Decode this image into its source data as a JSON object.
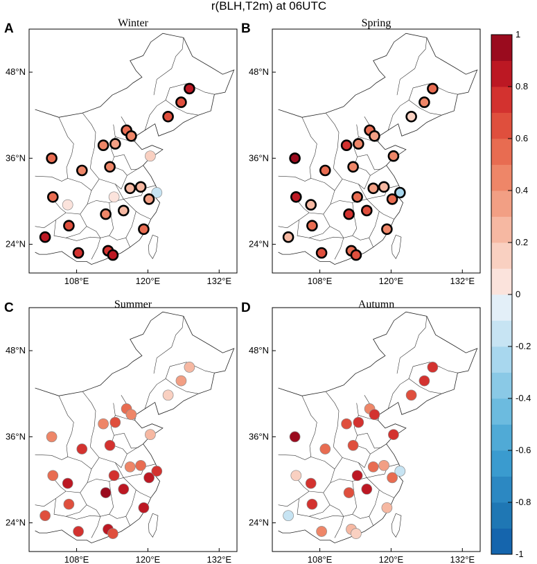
{
  "chart_data": {
    "type": "scatter",
    "title": "r(BLH,T2m) at 06UTC",
    "xlim": [
      100,
      135
    ],
    "ylim": [
      20,
      54
    ],
    "x_ticks": [
      108,
      120,
      132
    ],
    "x_tick_labels": [
      "108°E",
      "120°E",
      "132°E"
    ],
    "y_ticks": [
      24,
      36,
      48
    ],
    "y_tick_labels": [
      "24°N",
      "36°N",
      "48°N"
    ],
    "colorbar": {
      "min": -1,
      "max": 1,
      "step": 0.1,
      "tick_values": [
        1,
        0.8,
        0.6,
        0.4,
        0.2,
        0,
        -0.2,
        -0.4,
        -0.6,
        -0.8,
        -1
      ],
      "tick_labels": [
        "1",
        "0.8",
        "0.6",
        "0.4",
        "0.2",
        "0",
        "-0.2",
        "-0.4",
        "-0.6",
        "-0.8",
        "-1"
      ]
    },
    "panels": [
      {
        "letter": "A",
        "season": "Winter",
        "points": [
          {
            "lon": 127.0,
            "lat": 45.7,
            "r": 0.85,
            "sig": true
          },
          {
            "lon": 125.6,
            "lat": 43.8,
            "r": 0.65,
            "sig": true
          },
          {
            "lon": 123.4,
            "lat": 41.8,
            "r": 0.6,
            "sig": true
          },
          {
            "lon": 116.4,
            "lat": 39.9,
            "r": 0.55,
            "sig": true
          },
          {
            "lon": 117.2,
            "lat": 39.1,
            "r": 0.45,
            "sig": true
          },
          {
            "lon": 112.5,
            "lat": 37.8,
            "r": 0.4,
            "sig": true
          },
          {
            "lon": 114.5,
            "lat": 38.0,
            "r": 0.3,
            "sig": true
          },
          {
            "lon": 120.4,
            "lat": 36.3,
            "r": 0.12,
            "sig": false
          },
          {
            "lon": 103.8,
            "lat": 36.0,
            "r": 0.55,
            "sig": true
          },
          {
            "lon": 108.9,
            "lat": 34.3,
            "r": 0.4,
            "sig": true
          },
          {
            "lon": 113.6,
            "lat": 34.8,
            "r": 0.4,
            "sig": true
          },
          {
            "lon": 117.0,
            "lat": 31.8,
            "r": 0.25,
            "sig": true
          },
          {
            "lon": 118.8,
            "lat": 32.0,
            "r": 0.2,
            "sig": true
          },
          {
            "lon": 121.5,
            "lat": 31.2,
            "r": -0.15,
            "sig": false
          },
          {
            "lon": 104.0,
            "lat": 30.6,
            "r": 0.5,
            "sig": true
          },
          {
            "lon": 114.3,
            "lat": 30.6,
            "r": 0.08,
            "sig": false
          },
          {
            "lon": 120.2,
            "lat": 30.3,
            "r": 0.3,
            "sig": true
          },
          {
            "lon": 106.5,
            "lat": 29.5,
            "r": 0.0,
            "sig": false
          },
          {
            "lon": 112.9,
            "lat": 28.2,
            "r": 0.4,
            "sig": true
          },
          {
            "lon": 115.9,
            "lat": 28.7,
            "r": 0.25,
            "sig": true
          },
          {
            "lon": 106.7,
            "lat": 26.6,
            "r": 0.6,
            "sig": true
          },
          {
            "lon": 119.3,
            "lat": 26.1,
            "r": 0.5,
            "sig": true
          },
          {
            "lon": 102.7,
            "lat": 25.0,
            "r": 0.8,
            "sig": true
          },
          {
            "lon": 108.3,
            "lat": 22.8,
            "r": 0.75,
            "sig": true
          },
          {
            "lon": 113.3,
            "lat": 23.1,
            "r": 0.7,
            "sig": true
          },
          {
            "lon": 114.1,
            "lat": 22.5,
            "r": 0.85,
            "sig": true
          }
        ]
      },
      {
        "letter": "B",
        "season": "Spring",
        "points": [
          {
            "lon": 127.0,
            "lat": 45.7,
            "r": 0.55,
            "sig": true
          },
          {
            "lon": 125.6,
            "lat": 43.8,
            "r": 0.45,
            "sig": true
          },
          {
            "lon": 123.4,
            "lat": 41.8,
            "r": 0.15,
            "sig": true
          },
          {
            "lon": 116.4,
            "lat": 39.9,
            "r": 0.55,
            "sig": true
          },
          {
            "lon": 117.2,
            "lat": 39.1,
            "r": 0.35,
            "sig": true
          },
          {
            "lon": 112.5,
            "lat": 37.8,
            "r": 0.7,
            "sig": true
          },
          {
            "lon": 114.5,
            "lat": 38.0,
            "r": 0.45,
            "sig": true
          },
          {
            "lon": 120.4,
            "lat": 36.3,
            "r": 0.45,
            "sig": true
          },
          {
            "lon": 103.8,
            "lat": 36.0,
            "r": 0.9,
            "sig": true
          },
          {
            "lon": 108.9,
            "lat": 34.3,
            "r": 0.55,
            "sig": true
          },
          {
            "lon": 113.6,
            "lat": 34.8,
            "r": 0.45,
            "sig": true
          },
          {
            "lon": 117.0,
            "lat": 31.8,
            "r": 0.35,
            "sig": true
          },
          {
            "lon": 118.8,
            "lat": 32.0,
            "r": 0.25,
            "sig": true
          },
          {
            "lon": 121.5,
            "lat": 31.2,
            "r": -0.3,
            "sig": true
          },
          {
            "lon": 104.0,
            "lat": 30.6,
            "r": 0.85,
            "sig": true
          },
          {
            "lon": 114.3,
            "lat": 30.6,
            "r": 0.5,
            "sig": true
          },
          {
            "lon": 120.2,
            "lat": 30.3,
            "r": 0.55,
            "sig": true
          },
          {
            "lon": 106.5,
            "lat": 29.5,
            "r": 0.2,
            "sig": true
          },
          {
            "lon": 112.9,
            "lat": 28.2,
            "r": 0.7,
            "sig": true
          },
          {
            "lon": 115.9,
            "lat": 28.7,
            "r": 0.6,
            "sig": true
          },
          {
            "lon": 106.7,
            "lat": 26.6,
            "r": 0.55,
            "sig": true
          },
          {
            "lon": 119.3,
            "lat": 26.1,
            "r": 0.45,
            "sig": true
          },
          {
            "lon": 102.7,
            "lat": 25.0,
            "r": 0.2,
            "sig": true
          },
          {
            "lon": 108.3,
            "lat": 22.8,
            "r": 0.6,
            "sig": true
          },
          {
            "lon": 113.3,
            "lat": 23.1,
            "r": 0.55,
            "sig": true
          },
          {
            "lon": 114.1,
            "lat": 22.5,
            "r": 0.65,
            "sig": true
          }
        ]
      },
      {
        "letter": "C",
        "season": "Summer",
        "points": [
          {
            "lon": 127.0,
            "lat": 45.7,
            "r": 0.25,
            "sig": false
          },
          {
            "lon": 125.6,
            "lat": 43.8,
            "r": 0.3,
            "sig": false
          },
          {
            "lon": 123.4,
            "lat": 41.8,
            "r": 0.15,
            "sig": false
          },
          {
            "lon": 116.4,
            "lat": 39.9,
            "r": 0.5,
            "sig": false
          },
          {
            "lon": 117.2,
            "lat": 39.1,
            "r": 0.4,
            "sig": false
          },
          {
            "lon": 112.5,
            "lat": 37.8,
            "r": 0.45,
            "sig": false
          },
          {
            "lon": 114.5,
            "lat": 38.0,
            "r": 0.6,
            "sig": false
          },
          {
            "lon": 120.4,
            "lat": 36.3,
            "r": 0.2,
            "sig": false
          },
          {
            "lon": 103.8,
            "lat": 36.0,
            "r": 0.45,
            "sig": false
          },
          {
            "lon": 108.9,
            "lat": 34.3,
            "r": 0.75,
            "sig": false
          },
          {
            "lon": 113.6,
            "lat": 34.8,
            "r": 0.7,
            "sig": false
          },
          {
            "lon": 117.0,
            "lat": 31.8,
            "r": 0.45,
            "sig": false
          },
          {
            "lon": 118.8,
            "lat": 32.0,
            "r": 0.55,
            "sig": false
          },
          {
            "lon": 121.5,
            "lat": 31.2,
            "r": 0.7,
            "sig": false
          },
          {
            "lon": 104.0,
            "lat": 30.6,
            "r": 0.55,
            "sig": false
          },
          {
            "lon": 114.3,
            "lat": 30.6,
            "r": 0.75,
            "sig": false
          },
          {
            "lon": 120.2,
            "lat": 30.3,
            "r": 0.8,
            "sig": false
          },
          {
            "lon": 106.5,
            "lat": 29.5,
            "r": 0.85,
            "sig": false
          },
          {
            "lon": 112.9,
            "lat": 28.2,
            "r": 0.9,
            "sig": false
          },
          {
            "lon": 115.9,
            "lat": 28.7,
            "r": 0.85,
            "sig": false
          },
          {
            "lon": 106.7,
            "lat": 26.6,
            "r": 0.65,
            "sig": false
          },
          {
            "lon": 119.3,
            "lat": 26.1,
            "r": 0.85,
            "sig": false
          },
          {
            "lon": 102.7,
            "lat": 25.0,
            "r": 0.6,
            "sig": false
          },
          {
            "lon": 108.3,
            "lat": 22.8,
            "r": 0.7,
            "sig": false
          },
          {
            "lon": 113.3,
            "lat": 23.1,
            "r": 0.8,
            "sig": false
          },
          {
            "lon": 114.1,
            "lat": 22.5,
            "r": 0.65,
            "sig": false
          }
        ]
      },
      {
        "letter": "D",
        "season": "Autumn",
        "points": [
          {
            "lon": 127.0,
            "lat": 45.7,
            "r": 0.75,
            "sig": false
          },
          {
            "lon": 125.6,
            "lat": 43.8,
            "r": 0.7,
            "sig": false
          },
          {
            "lon": 123.4,
            "lat": 41.8,
            "r": 0.65,
            "sig": false
          },
          {
            "lon": 116.4,
            "lat": 39.9,
            "r": 0.45,
            "sig": false
          },
          {
            "lon": 117.2,
            "lat": 39.1,
            "r": 0.7,
            "sig": false
          },
          {
            "lon": 112.5,
            "lat": 37.8,
            "r": 0.65,
            "sig": false
          },
          {
            "lon": 114.5,
            "lat": 38.0,
            "r": 0.7,
            "sig": false
          },
          {
            "lon": 120.4,
            "lat": 36.3,
            "r": 0.75,
            "sig": false
          },
          {
            "lon": 103.8,
            "lat": 36.0,
            "r": 0.9,
            "sig": false
          },
          {
            "lon": 108.9,
            "lat": 34.3,
            "r": 0.55,
            "sig": false
          },
          {
            "lon": 113.6,
            "lat": 34.8,
            "r": 0.65,
            "sig": false
          },
          {
            "lon": 117.0,
            "lat": 31.8,
            "r": 0.55,
            "sig": false
          },
          {
            "lon": 118.8,
            "lat": 32.0,
            "r": 0.35,
            "sig": false
          },
          {
            "lon": 121.5,
            "lat": 31.2,
            "r": -0.2,
            "sig": false
          },
          {
            "lon": 104.0,
            "lat": 30.6,
            "r": 0.15,
            "sig": false
          },
          {
            "lon": 114.3,
            "lat": 30.6,
            "r": 0.8,
            "sig": false
          },
          {
            "lon": 120.2,
            "lat": 30.3,
            "r": 0.5,
            "sig": false
          },
          {
            "lon": 106.5,
            "lat": 29.5,
            "r": 0.75,
            "sig": false
          },
          {
            "lon": 112.9,
            "lat": 28.2,
            "r": 0.6,
            "sig": false
          },
          {
            "lon": 115.9,
            "lat": 28.7,
            "r": 0.85,
            "sig": false
          },
          {
            "lon": 106.7,
            "lat": 26.6,
            "r": 0.7,
            "sig": false
          },
          {
            "lon": 119.3,
            "lat": 26.1,
            "r": 0.2,
            "sig": false
          },
          {
            "lon": 102.7,
            "lat": 25.0,
            "r": -0.2,
            "sig": false
          },
          {
            "lon": 108.3,
            "lat": 22.8,
            "r": 0.45,
            "sig": false
          },
          {
            "lon": 113.3,
            "lat": 23.1,
            "r": 0.25,
            "sig": false
          },
          {
            "lon": 114.1,
            "lat": 22.5,
            "r": 0.1,
            "sig": false
          }
        ]
      }
    ]
  }
}
